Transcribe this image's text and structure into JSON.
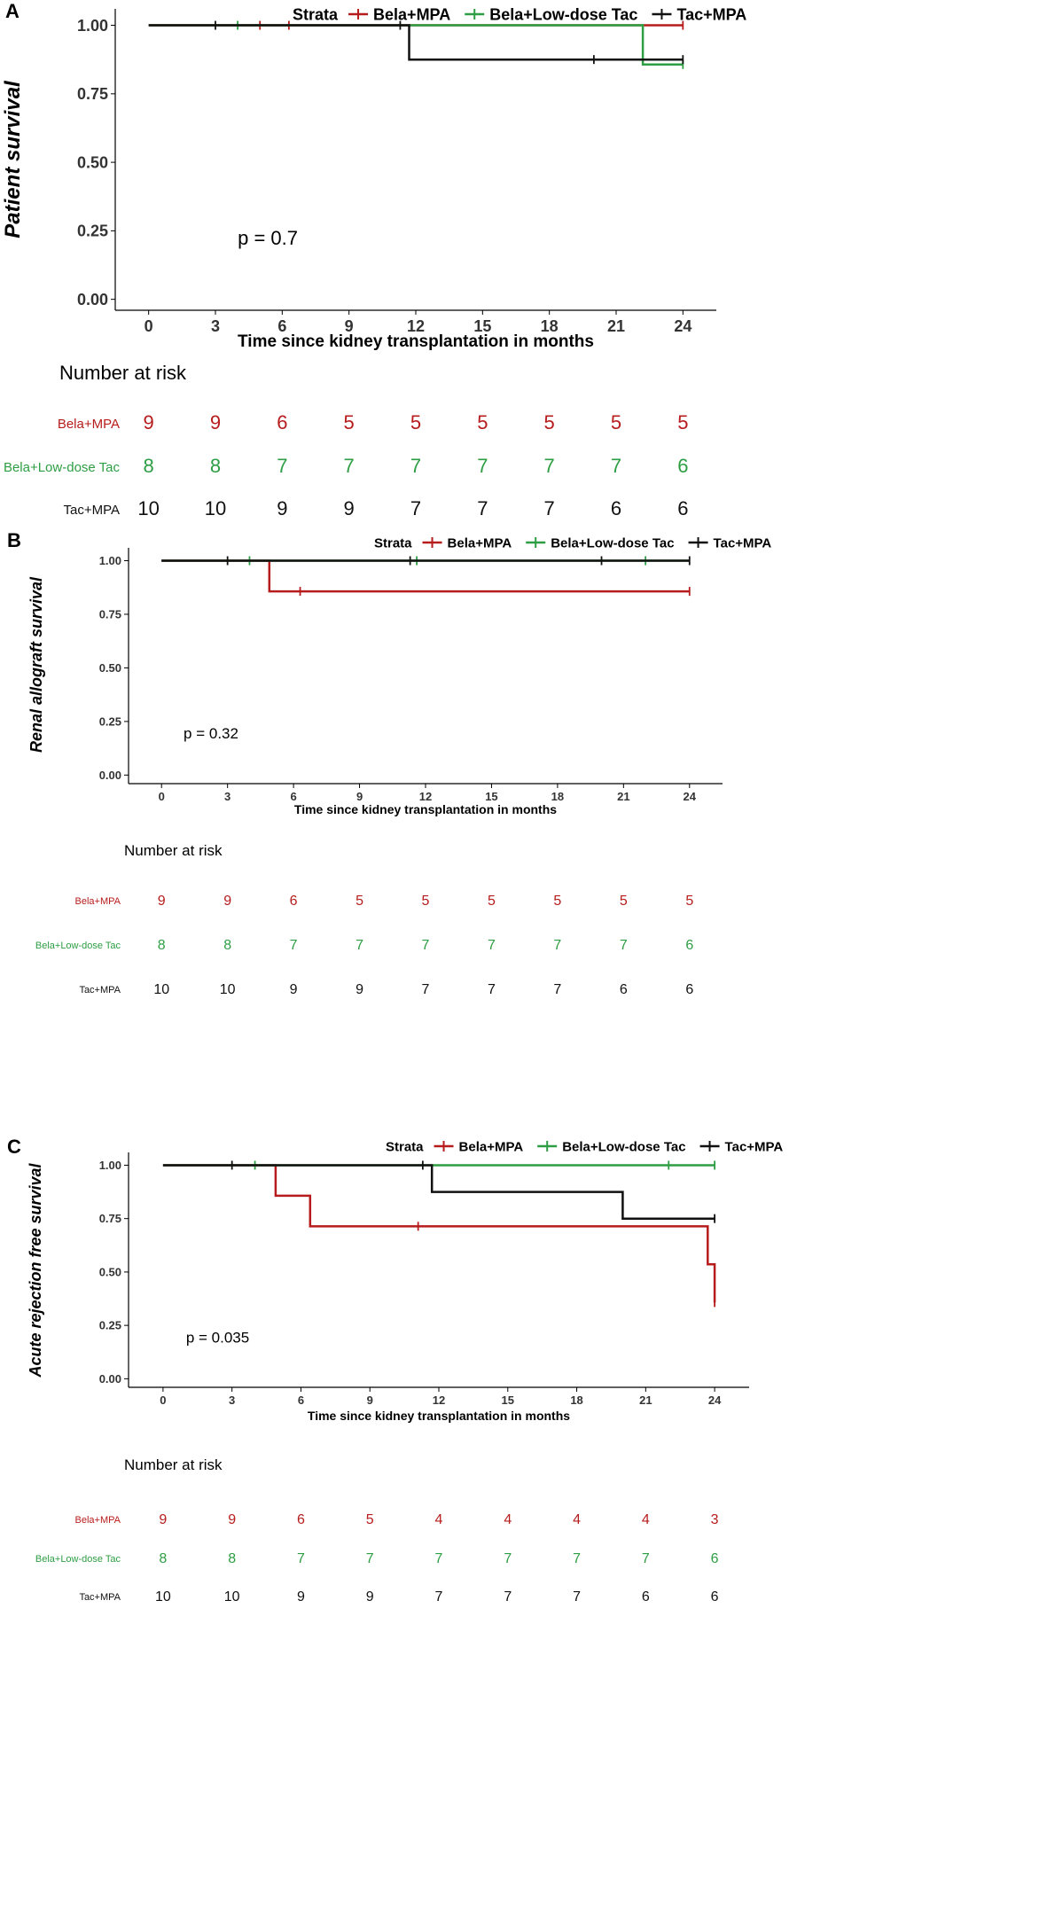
{
  "colors": {
    "bela_mpa": "#b71c1c",
    "bela_lowdose_tac": "#2e9e44",
    "tac_mpa": "#111111"
  },
  "chart_data": [
    {
      "panel_label": "A",
      "type": "line",
      "subtype": "kaplan-meier step curve",
      "legend_title": "Strata",
      "legend_position": "top",
      "ylabel": "Patient survival",
      "xlabel": "Time since kidney transplantation in months",
      "xlim": [
        -1.5,
        25.5
      ],
      "ylim": [
        -0.04,
        1.06
      ],
      "xticks": [
        0,
        3,
        6,
        9,
        12,
        15,
        18,
        21,
        24
      ],
      "yticks": [
        "0.00",
        "0.25",
        "0.50",
        "0.75",
        "1.00"
      ],
      "p_value": "p = 0.7",
      "risk_table_title": "Number at risk",
      "series": [
        {
          "name": "Bela+MPA",
          "color": "#b71c1c",
          "steps": [
            [
              0,
              1.0
            ],
            [
              24,
              1.0
            ]
          ],
          "censors": [
            [
              5,
              1.0
            ],
            [
              6.3,
              1.0
            ],
            [
              24,
              1.0
            ]
          ],
          "at_risk": [
            9,
            9,
            6,
            5,
            5,
            5,
            5,
            5,
            5
          ]
        },
        {
          "name": "Bela+Low-dose Tac",
          "color": "#2e9e44",
          "steps": [
            [
              0,
              1.0
            ],
            [
              22.2,
              1.0
            ],
            [
              22.2,
              0.857
            ],
            [
              24,
              0.857
            ]
          ],
          "censors": [
            [
              4,
              1.0
            ],
            [
              24,
              0.857
            ]
          ],
          "at_risk": [
            8,
            8,
            7,
            7,
            7,
            7,
            7,
            7,
            6
          ]
        },
        {
          "name": "Tac+MPA",
          "color": "#111111",
          "steps": [
            [
              0,
              1.0
            ],
            [
              11.7,
              1.0
            ],
            [
              11.7,
              0.875
            ],
            [
              24,
              0.875
            ]
          ],
          "censors": [
            [
              3,
              1.0
            ],
            [
              11.3,
              1.0
            ],
            [
              20,
              0.875
            ],
            [
              24,
              0.875
            ]
          ],
          "at_risk": [
            10,
            10,
            9,
            9,
            7,
            7,
            7,
            6,
            6
          ]
        }
      ]
    },
    {
      "panel_label": "B",
      "type": "line",
      "subtype": "kaplan-meier step curve",
      "legend_title": "Strata",
      "legend_position": "top",
      "ylabel": "Renal allograft survival",
      "xlabel": "Time since kidney transplantation in months",
      "xlim": [
        -1.5,
        25.5
      ],
      "ylim": [
        -0.04,
        1.06
      ],
      "xticks": [
        0,
        3,
        6,
        9,
        12,
        15,
        18,
        21,
        24
      ],
      "yticks": [
        "0.00",
        "0.25",
        "0.50",
        "0.75",
        "1.00"
      ],
      "p_value": "p = 0.32",
      "risk_table_title": "Number at risk",
      "series": [
        {
          "name": "Bela+MPA",
          "color": "#b71c1c",
          "steps": [
            [
              0,
              1.0
            ],
            [
              4.9,
              1.0
            ],
            [
              4.9,
              0.857
            ],
            [
              24,
              0.857
            ]
          ],
          "censors": [
            [
              6.3,
              0.857
            ],
            [
              24,
              0.857
            ]
          ],
          "at_risk": [
            9,
            9,
            6,
            5,
            5,
            5,
            5,
            5,
            5
          ]
        },
        {
          "name": "Bela+Low-dose Tac",
          "color": "#2e9e44",
          "steps": [
            [
              0,
              1.0
            ],
            [
              24,
              1.0
            ]
          ],
          "censors": [
            [
              4,
              1.0
            ],
            [
              11.6,
              1.0
            ],
            [
              22,
              1.0
            ]
          ],
          "at_risk": [
            8,
            8,
            7,
            7,
            7,
            7,
            7,
            7,
            6
          ]
        },
        {
          "name": "Tac+MPA",
          "color": "#111111",
          "steps": [
            [
              0,
              1.0
            ],
            [
              24,
              1.0
            ]
          ],
          "censors": [
            [
              3,
              1.0
            ],
            [
              11.3,
              1.0
            ],
            [
              20,
              1.0
            ],
            [
              24,
              1.0
            ]
          ],
          "at_risk": [
            10,
            10,
            9,
            9,
            7,
            7,
            7,
            6,
            6
          ]
        }
      ]
    },
    {
      "panel_label": "C",
      "type": "line",
      "subtype": "kaplan-meier step curve",
      "legend_title": "Strata",
      "legend_position": "top",
      "ylabel": "Acute rejection free survival",
      "xlabel": "Time since kidney transplantation in months",
      "xlim": [
        -1.5,
        25.5
      ],
      "ylim": [
        -0.04,
        1.06
      ],
      "xticks": [
        0,
        3,
        6,
        9,
        12,
        15,
        18,
        21,
        24
      ],
      "yticks": [
        "0.00",
        "0.25",
        "0.50",
        "0.75",
        "1.00"
      ],
      "p_value": "p = 0.035",
      "risk_table_title": "Number at risk",
      "series": [
        {
          "name": "Bela+MPA",
          "color": "#b71c1c",
          "steps": [
            [
              0,
              1.0
            ],
            [
              4.9,
              1.0
            ],
            [
              4.9,
              0.857
            ],
            [
              6.4,
              0.857
            ],
            [
              6.4,
              0.714
            ],
            [
              23.7,
              0.714
            ],
            [
              23.7,
              0.536
            ],
            [
              24,
              0.536
            ],
            [
              24,
              0.357
            ]
          ],
          "censors": [
            [
              11.1,
              0.714
            ],
            [
              24,
              0.357
            ]
          ],
          "at_risk": [
            9,
            9,
            6,
            5,
            4,
            4,
            4,
            4,
            3
          ]
        },
        {
          "name": "Bela+Low-dose Tac",
          "color": "#2e9e44",
          "steps": [
            [
              0,
              1.0
            ],
            [
              24,
              1.0
            ]
          ],
          "censors": [
            [
              4,
              1.0
            ],
            [
              22,
              1.0
            ],
            [
              24,
              1.0
            ]
          ],
          "at_risk": [
            8,
            8,
            7,
            7,
            7,
            7,
            7,
            7,
            6
          ]
        },
        {
          "name": "Tac+MPA",
          "color": "#111111",
          "steps": [
            [
              0,
              1.0
            ],
            [
              11.7,
              1.0
            ],
            [
              11.7,
              0.875
            ],
            [
              20,
              0.875
            ],
            [
              20,
              0.75
            ],
            [
              24,
              0.75
            ]
          ],
          "censors": [
            [
              3,
              1.0
            ],
            [
              11.3,
              1.0
            ],
            [
              24,
              0.75
            ]
          ],
          "at_risk": [
            10,
            10,
            9,
            9,
            7,
            7,
            7,
            6,
            6
          ]
        }
      ]
    }
  ]
}
